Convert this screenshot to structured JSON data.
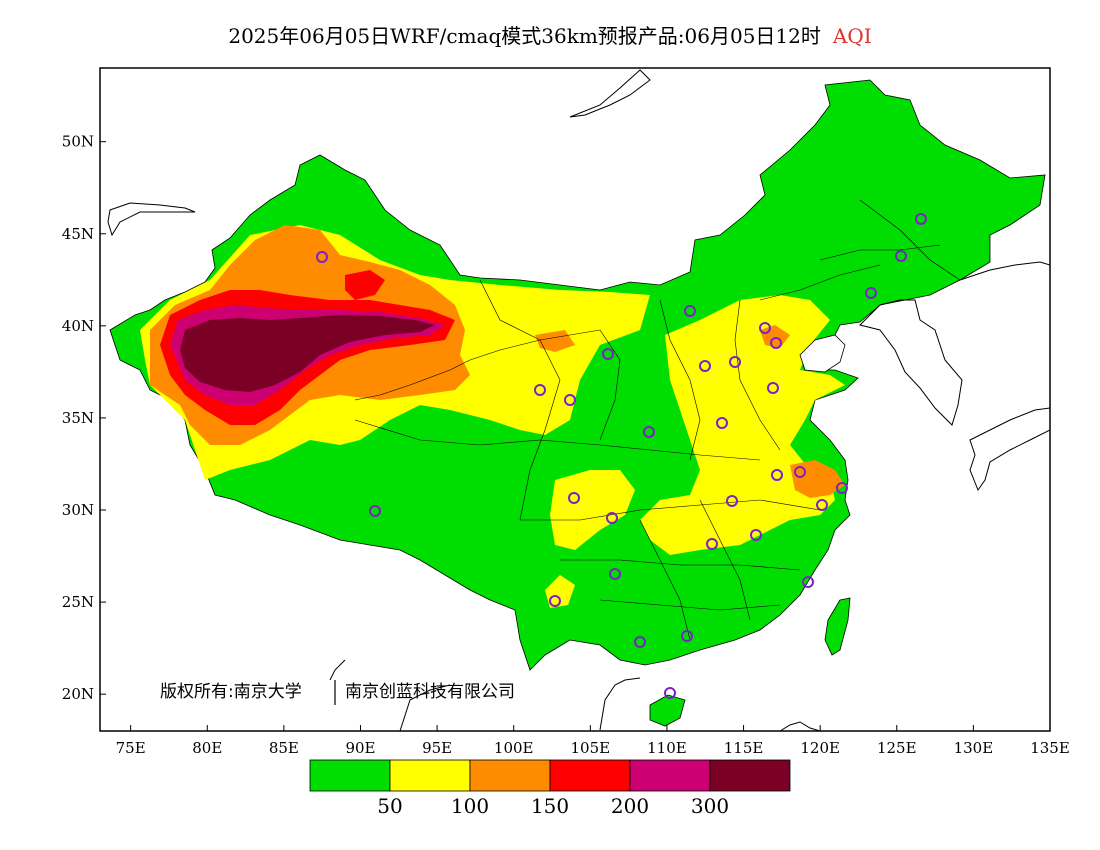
{
  "title": {
    "main": "2025年06月05日WRF/cmaq模式36km预报产品:06月05日12时",
    "variable": "AQI",
    "variable_color": "#e0302a"
  },
  "copyright": {
    "owner": "版权所有:南京大学",
    "company": "南京创蓝科技有限公司"
  },
  "map": {
    "lon_range": [
      73,
      135
    ],
    "lat_range": [
      18,
      54
    ],
    "lon_ticks": [
      "75E",
      "80E",
      "85E",
      "90E",
      "95E",
      "100E",
      "105E",
      "110E",
      "115E",
      "120E",
      "125E",
      "130E",
      "135E"
    ],
    "lat_ticks": [
      "50N",
      "45N",
      "40N",
      "35N",
      "30N",
      "25N",
      "20N"
    ],
    "colors": {
      "aqi_0_50": "#00dd00",
      "aqi_50_100": "#ffff00",
      "aqi_100_150": "#ff8c00",
      "aqi_150_200": "#ff0000",
      "aqi_200_300": "#cc0070",
      "aqi_300_plus": "#7a0025",
      "station_marker": "#7a22c8"
    }
  },
  "colorbar": {
    "colors": [
      "#00dd00",
      "#ffff00",
      "#ff8c00",
      "#ff0000",
      "#cc0070",
      "#7a0025"
    ],
    "labels": [
      "50",
      "100",
      "150",
      "200",
      "300"
    ]
  }
}
